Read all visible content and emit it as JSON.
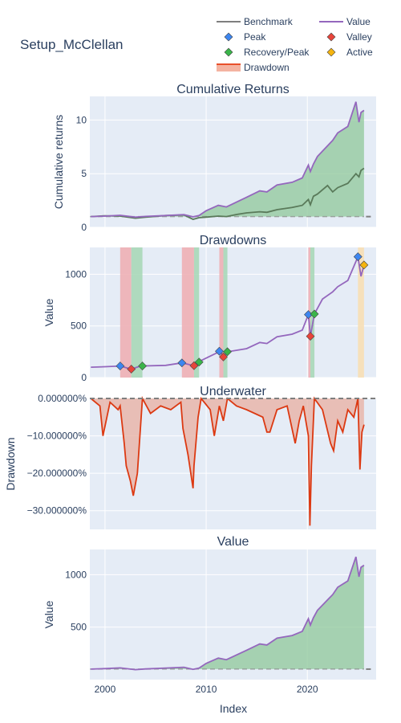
{
  "figure": {
    "title": "Setup_McClellan",
    "xlabel": "Index",
    "legend": [
      {
        "label": "Benchmark",
        "kind": "line",
        "color": "#7f7f7f"
      },
      {
        "label": "Value",
        "kind": "line",
        "color": "#9467bd"
      },
      {
        "label": "Peak",
        "kind": "marker",
        "color": "#3d86f0"
      },
      {
        "label": "Valley",
        "kind": "marker",
        "color": "#e8443a"
      },
      {
        "label": "Recovery/Peak",
        "kind": "marker",
        "color": "#3ab54a"
      },
      {
        "label": "Active",
        "kind": "marker",
        "color": "#f5b40f"
      },
      {
        "label": "Drawdown",
        "kind": "band",
        "color": "#e8502b"
      }
    ],
    "colors": {
      "plot_bg": "#e5ecf6",
      "value": "#9467bd",
      "benchmark": "#7f7f7f",
      "fill_green": "#8fc89a",
      "drawdown_line": "#dc3912",
      "drawdown_fill": "#e9b3a6",
      "peak": "#3d86f0",
      "valley": "#e8443a",
      "recovery": "#3ab54a",
      "active": "#f5b40f",
      "dd_band": "#eeb0b5",
      "rec_band": "#a9d8b8",
      "active_band": "#f7dfb5"
    }
  },
  "chart_data": [
    {
      "type": "line",
      "title": "Cumulative Returns",
      "ylabel": "Cumulative returns",
      "xlim": [
        1998.5,
        2026.8
      ],
      "ylim": [
        0,
        12.2
      ],
      "yticks": [
        0,
        5,
        10
      ],
      "xticks": [
        2000,
        2010,
        2020
      ],
      "baseline": 1,
      "series": [
        {
          "name": "Value",
          "x": [
            1998.6,
            2000,
            2001.5,
            2003,
            2004,
            2006,
            2007.8,
            2008.7,
            2009.3,
            2010,
            2011.2,
            2012,
            2013,
            2014,
            2015.3,
            2016,
            2017,
            2018.5,
            2019.5,
            2020.1,
            2020.3,
            2020.6,
            2021,
            2022,
            2022.5,
            2023,
            2024,
            2024.8,
            2025.1,
            2025.3,
            2025.6
          ],
          "values": [
            1.0,
            1.05,
            1.12,
            0.95,
            1.02,
            1.1,
            1.18,
            0.98,
            1.1,
            1.55,
            2.05,
            1.9,
            2.35,
            2.8,
            3.4,
            3.3,
            3.95,
            4.2,
            4.6,
            5.8,
            5.2,
            5.9,
            6.6,
            7.6,
            8.1,
            8.8,
            9.4,
            11.7,
            9.8,
            10.7,
            10.9
          ]
        },
        {
          "name": "Benchmark",
          "x": [
            1998.6,
            2000,
            2001.5,
            2003,
            2004,
            2006,
            2007.8,
            2008.7,
            2009.3,
            2010,
            2011.2,
            2012,
            2013,
            2014,
            2015.3,
            2016,
            2017,
            2018.5,
            2019.5,
            2020.1,
            2020.3,
            2020.6,
            2021,
            2022,
            2022.5,
            2023,
            2024,
            2024.8,
            2025.1,
            2025.3,
            2025.6
          ],
          "values": [
            1.0,
            1.08,
            1.05,
            0.85,
            0.95,
            1.1,
            1.15,
            0.75,
            0.9,
            0.95,
            1.05,
            1.0,
            1.2,
            1.35,
            1.45,
            1.4,
            1.65,
            1.85,
            2.05,
            2.6,
            2.1,
            2.9,
            3.1,
            3.9,
            3.3,
            3.7,
            4.1,
            5.0,
            4.7,
            5.3,
            5.5
          ]
        }
      ]
    },
    {
      "type": "line",
      "title": "Drawdowns",
      "ylabel": "Value",
      "xlim": [
        1998.5,
        2026.8
      ],
      "ylim": [
        0,
        1260
      ],
      "yticks": [
        0,
        500,
        1000
      ],
      "xticks": [
        2000,
        2010,
        2020
      ],
      "series": [
        {
          "name": "Value",
          "x": [
            1998.6,
            2000,
            2001.5,
            2002.6,
            2003.5,
            2006,
            2007.6,
            2008.8,
            2009.2,
            2011.4,
            2011.7,
            2012.1,
            2014,
            2015.3,
            2016,
            2017,
            2018.5,
            2019.5,
            2020.1,
            2020.3,
            2020.7,
            2021.5,
            2022.5,
            2023,
            2024,
            2025.0,
            2025.3,
            2025.6
          ],
          "values": [
            100,
            105,
            112,
            82,
            112,
            118,
            142,
            115,
            150,
            255,
            200,
            250,
            280,
            340,
            330,
            395,
            420,
            460,
            610,
            400,
            615,
            760,
            830,
            880,
            940,
            1170,
            980,
            1090
          ]
        }
      ],
      "markers": {
        "peak": [
          {
            "x": 2001.5,
            "y": 112
          },
          {
            "x": 2007.6,
            "y": 142
          },
          {
            "x": 2011.3,
            "y": 255
          },
          {
            "x": 2020.1,
            "y": 610
          },
          {
            "x": 2025.0,
            "y": 1170
          }
        ],
        "valley": [
          {
            "x": 2002.6,
            "y": 82
          },
          {
            "x": 2008.8,
            "y": 115
          },
          {
            "x": 2011.7,
            "y": 200
          },
          {
            "x": 2020.3,
            "y": 400
          }
        ],
        "recovery": [
          {
            "x": 2003.7,
            "y": 112
          },
          {
            "x": 2009.3,
            "y": 150
          },
          {
            "x": 2012.1,
            "y": 250
          },
          {
            "x": 2020.7,
            "y": 615
          }
        ],
        "active": [
          {
            "x": 2025.6,
            "y": 1090
          }
        ]
      },
      "bands": {
        "drawdown": [
          [
            2001.5,
            2002.6
          ],
          [
            2007.6,
            2008.8
          ],
          [
            2011.3,
            2011.7
          ],
          [
            2020.1,
            2020.3
          ],
          [
            2025.0,
            2025.6
          ]
        ],
        "recovery": [
          [
            2002.6,
            2003.7
          ],
          [
            2008.8,
            2009.3
          ],
          [
            2011.7,
            2012.1
          ],
          [
            2020.3,
            2020.7
          ]
        ]
      }
    },
    {
      "type": "area",
      "title": "Underwater",
      "ylabel": "Drawdown",
      "xlim": [
        1998.5,
        2026.8
      ],
      "ylim": [
        -0.35,
        0.0
      ],
      "yticks": [
        0,
        -0.1,
        -0.2,
        -0.3
      ],
      "yticklabels": [
        "0.000000%",
        "−10.000000%",
        "−20.000000%",
        "−30.000000%"
      ],
      "xticks": [
        2000,
        2010,
        2020
      ],
      "series": [
        {
          "name": "Drawdown",
          "x": [
            1998.6,
            1999.5,
            1999.8,
            2000.5,
            2001.3,
            2001.5,
            2001.9,
            2002.1,
            2002.5,
            2002.8,
            2003.2,
            2003.7,
            2004.5,
            2005.5,
            2006.5,
            2007.5,
            2007.7,
            2008.2,
            2008.7,
            2008.8,
            2009.2,
            2009.5,
            2010.4,
            2010.8,
            2011.3,
            2011.7,
            2012.1,
            2013,
            2014,
            2015.6,
            2016,
            2016.3,
            2017,
            2018,
            2018.8,
            2019.2,
            2019.6,
            2020.1,
            2020.25,
            2020.4,
            2020.7,
            2021.5,
            2022.3,
            2022.6,
            2023,
            2023.5,
            2024,
            2024.6,
            2025.0,
            2025.2,
            2025.4,
            2025.6
          ],
          "values": [
            0,
            -0.02,
            -0.1,
            -0.01,
            -0.03,
            -0.02,
            -0.12,
            -0.18,
            -0.22,
            -0.26,
            -0.2,
            0,
            -0.04,
            -0.02,
            -0.03,
            -0.01,
            -0.08,
            -0.15,
            -0.24,
            -0.18,
            -0.05,
            0,
            -0.03,
            -0.1,
            -0.02,
            -0.06,
            0,
            -0.02,
            -0.03,
            -0.05,
            -0.09,
            -0.09,
            -0.03,
            -0.02,
            -0.12,
            -0.06,
            -0.02,
            -0.1,
            -0.34,
            -0.18,
            0,
            -0.03,
            -0.12,
            -0.14,
            -0.06,
            -0.09,
            -0.03,
            -0.05,
            0,
            -0.19,
            -0.09,
            -0.07
          ]
        }
      ]
    },
    {
      "type": "line",
      "title": "Value",
      "ylabel": "Value",
      "xlim": [
        1998.5,
        2026.8
      ],
      "ylim": [
        0,
        1240
      ],
      "yticks": [
        500,
        1000
      ],
      "xticks": [
        2000,
        2010,
        2020
      ],
      "xticklabels": [
        "2000",
        "2010",
        "2020"
      ],
      "baseline": 100,
      "series": [
        {
          "name": "Value",
          "x": [
            1998.6,
            2000,
            2001.5,
            2003,
            2004,
            2006,
            2007.8,
            2008.7,
            2009.3,
            2010,
            2011.2,
            2012,
            2013,
            2014,
            2015.3,
            2016,
            2017,
            2018.5,
            2019.5,
            2020.1,
            2020.3,
            2020.6,
            2021,
            2022,
            2022.5,
            2023,
            2024,
            2024.8,
            2025.1,
            2025.3,
            2025.6
          ],
          "values": [
            100,
            105,
            112,
            95,
            102,
            110,
            118,
            98,
            110,
            155,
            205,
            190,
            235,
            280,
            340,
            330,
            395,
            420,
            460,
            580,
            520,
            590,
            660,
            760,
            810,
            880,
            940,
            1170,
            980,
            1070,
            1090
          ]
        }
      ]
    }
  ]
}
